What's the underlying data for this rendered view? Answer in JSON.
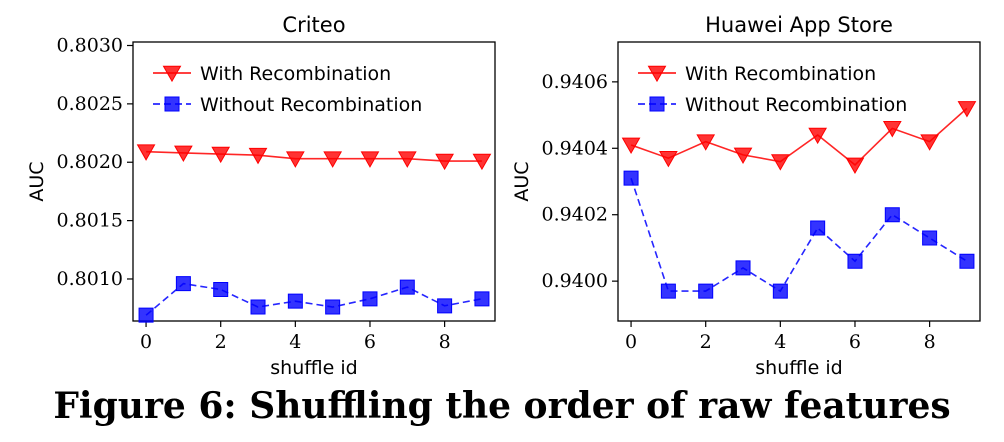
{
  "figure": {
    "caption": "Figure 6: Shuffling the order of raw features"
  },
  "chart_data": [
    {
      "type": "line",
      "title": "Criteo",
      "xlabel": "shuffle id",
      "ylabel": "AUC",
      "x": [
        0,
        1,
        2,
        3,
        4,
        5,
        6,
        7,
        8,
        9
      ],
      "xticks": [
        "0",
        "2",
        "4",
        "6",
        "8"
      ],
      "xlim": [
        -0.35,
        9.35
      ],
      "ylim": [
        0.80064,
        0.80303
      ],
      "yticks": [
        "0.8010",
        "0.8015",
        "0.8020",
        "0.8025",
        "0.8030"
      ],
      "ytick_values": [
        0.801,
        0.8015,
        0.802,
        0.8025,
        0.803
      ],
      "legend_position": "upper-left",
      "series": [
        {
          "name": "With Recombination",
          "color": "#ff0000",
          "marker": "triangle-down",
          "linestyle": "solid",
          "values": [
            0.80209,
            0.80208,
            0.80207,
            0.80206,
            0.80203,
            0.80203,
            0.80203,
            0.80203,
            0.80201,
            0.80201
          ]
        },
        {
          "name": "Without Recombination",
          "color": "#0000ff",
          "marker": "square",
          "linestyle": "dashed",
          "values": [
            0.80069,
            0.80096,
            0.80091,
            0.80076,
            0.80081,
            0.80076,
            0.80083,
            0.80093,
            0.80077,
            0.80083
          ]
        }
      ]
    },
    {
      "type": "line",
      "title": "Huawei App Store",
      "xlabel": "shuffle id",
      "ylabel": "AUC",
      "x": [
        0,
        1,
        2,
        3,
        4,
        5,
        6,
        7,
        8,
        9
      ],
      "xticks": [
        "0",
        "2",
        "4",
        "6",
        "8"
      ],
      "xlim": [
        -0.35,
        9.35
      ],
      "ylim": [
        0.93988,
        0.94072
      ],
      "yticks": [
        "0.9400",
        "0.9402",
        "0.9404",
        "0.9406"
      ],
      "ytick_values": [
        0.94,
        0.9402,
        0.9404,
        0.9406
      ],
      "legend_position": "upper-left",
      "series": [
        {
          "name": "With Recombination",
          "color": "#ff0000",
          "marker": "triangle-down",
          "linestyle": "solid",
          "values": [
            0.94041,
            0.94037,
            0.94042,
            0.94038,
            0.94036,
            0.94044,
            0.94035,
            0.94046,
            0.94042,
            0.94052
          ]
        },
        {
          "name": "Without Recombination",
          "color": "#0000ff",
          "marker": "square",
          "linestyle": "dashed",
          "values": [
            0.94031,
            0.93997,
            0.93997,
            0.94004,
            0.93997,
            0.94016,
            0.94006,
            0.9402,
            0.94013,
            0.94006
          ]
        }
      ]
    }
  ]
}
